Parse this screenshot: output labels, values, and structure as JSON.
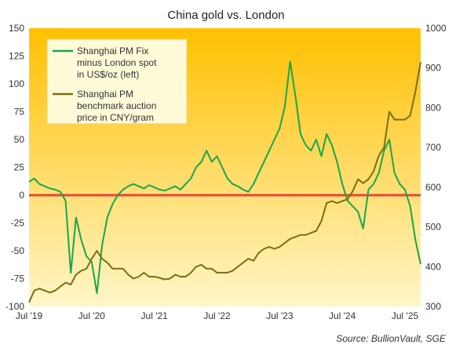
{
  "chart_data": {
    "type": "line",
    "title": "China gold vs. London",
    "source": "Source: BullionVault, SGE",
    "x_ticks": [
      "Jul '19",
      "Jul '20",
      "Jul '21",
      "Jul '22",
      "Jul '23",
      "Jul '24",
      "Jul '25"
    ],
    "x_range": [
      "2019-07",
      "2025-10"
    ],
    "left_axis": {
      "range": [
        -100,
        150
      ],
      "ticks": [
        150,
        125,
        100,
        75,
        50,
        25,
        0,
        -25,
        -50,
        -75,
        -100
      ]
    },
    "right_axis": {
      "range": [
        300,
        1000
      ],
      "ticks": [
        1000,
        900,
        800,
        700,
        600,
        500,
        400,
        300
      ]
    },
    "zero_line_color": "#e8443a",
    "background_gradient": [
      "#ffc000",
      "#fff6c8"
    ],
    "legend_position": "top-left",
    "series": [
      {
        "name": "Shanghai PM Fix minus London spot in US$/oz (left)",
        "legend_lines": [
          "Shanghai PM Fix",
          "minus London spot",
          "in US$/oz (left)"
        ],
        "axis": "left",
        "color": "#1aa64b",
        "points": [
          [
            "2019-07",
            12
          ],
          [
            "2019-08",
            15
          ],
          [
            "2019-09",
            10
          ],
          [
            "2019-10",
            8
          ],
          [
            "2019-11",
            6
          ],
          [
            "2019-12",
            5
          ],
          [
            "2020-01",
            3
          ],
          [
            "2020-02",
            -5
          ],
          [
            "2020-03",
            -70
          ],
          [
            "2020-04",
            -20
          ],
          [
            "2020-05",
            -40
          ],
          [
            "2020-06",
            -55
          ],
          [
            "2020-07",
            -60
          ],
          [
            "2020-08",
            -88
          ],
          [
            "2020-09",
            -45
          ],
          [
            "2020-10",
            -20
          ],
          [
            "2020-11",
            -8
          ],
          [
            "2020-12",
            0
          ],
          [
            "2021-01",
            5
          ],
          [
            "2021-02",
            8
          ],
          [
            "2021-03",
            10
          ],
          [
            "2021-04",
            8
          ],
          [
            "2021-05",
            6
          ],
          [
            "2021-06",
            9
          ],
          [
            "2021-07",
            7
          ],
          [
            "2021-08",
            5
          ],
          [
            "2021-09",
            4
          ],
          [
            "2021-10",
            6
          ],
          [
            "2021-11",
            8
          ],
          [
            "2021-12",
            5
          ],
          [
            "2022-01",
            10
          ],
          [
            "2022-02",
            15
          ],
          [
            "2022-03",
            25
          ],
          [
            "2022-04",
            30
          ],
          [
            "2022-05",
            40
          ],
          [
            "2022-06",
            30
          ],
          [
            "2022-07",
            35
          ],
          [
            "2022-08",
            25
          ],
          [
            "2022-09",
            15
          ],
          [
            "2022-10",
            10
          ],
          [
            "2022-11",
            8
          ],
          [
            "2022-12",
            5
          ],
          [
            "2023-01",
            3
          ],
          [
            "2023-02",
            10
          ],
          [
            "2023-03",
            20
          ],
          [
            "2023-04",
            30
          ],
          [
            "2023-05",
            40
          ],
          [
            "2023-06",
            50
          ],
          [
            "2023-07",
            60
          ],
          [
            "2023-08",
            80
          ],
          [
            "2023-09",
            120
          ],
          [
            "2023-10",
            90
          ],
          [
            "2023-11",
            55
          ],
          [
            "2023-12",
            45
          ],
          [
            "2024-01",
            40
          ],
          [
            "2024-02",
            50
          ],
          [
            "2024-03",
            35
          ],
          [
            "2024-04",
            55
          ],
          [
            "2024-05",
            45
          ],
          [
            "2024-06",
            30
          ],
          [
            "2024-07",
            10
          ],
          [
            "2024-08",
            -5
          ],
          [
            "2024-09",
            -10
          ],
          [
            "2024-10",
            -15
          ],
          [
            "2024-11",
            -30
          ],
          [
            "2024-12",
            5
          ],
          [
            "2025-01",
            10
          ],
          [
            "2025-02",
            20
          ],
          [
            "2025-03",
            40
          ],
          [
            "2025-04",
            50
          ],
          [
            "2025-05",
            20
          ],
          [
            "2025-06",
            10
          ],
          [
            "2025-07",
            5
          ],
          [
            "2025-08",
            -10
          ],
          [
            "2025-09",
            -40
          ],
          [
            "2025-10",
            -62
          ]
        ]
      },
      {
        "name": "Shanghai PM benchmark auction price in CNY/gram",
        "legend_lines": [
          "Shanghai PM",
          "benchmark auction",
          "price in CNY/gram"
        ],
        "axis": "right",
        "color": "#7a6e12",
        "points": [
          [
            "2019-07",
            310
          ],
          [
            "2019-08",
            340
          ],
          [
            "2019-09",
            345
          ],
          [
            "2019-10",
            340
          ],
          [
            "2019-11",
            335
          ],
          [
            "2019-12",
            340
          ],
          [
            "2020-01",
            350
          ],
          [
            "2020-02",
            360
          ],
          [
            "2020-03",
            355
          ],
          [
            "2020-04",
            380
          ],
          [
            "2020-05",
            390
          ],
          [
            "2020-06",
            395
          ],
          [
            "2020-07",
            420
          ],
          [
            "2020-08",
            440
          ],
          [
            "2020-09",
            420
          ],
          [
            "2020-10",
            410
          ],
          [
            "2020-11",
            395
          ],
          [
            "2020-12",
            395
          ],
          [
            "2021-01",
            395
          ],
          [
            "2021-02",
            380
          ],
          [
            "2021-03",
            370
          ],
          [
            "2021-04",
            375
          ],
          [
            "2021-05",
            385
          ],
          [
            "2021-06",
            375
          ],
          [
            "2021-07",
            375
          ],
          [
            "2021-08",
            372
          ],
          [
            "2021-09",
            368
          ],
          [
            "2021-10",
            370
          ],
          [
            "2021-11",
            380
          ],
          [
            "2021-12",
            375
          ],
          [
            "2022-01",
            375
          ],
          [
            "2022-02",
            385
          ],
          [
            "2022-03",
            400
          ],
          [
            "2022-04",
            405
          ],
          [
            "2022-05",
            395
          ],
          [
            "2022-06",
            395
          ],
          [
            "2022-07",
            385
          ],
          [
            "2022-08",
            385
          ],
          [
            "2022-09",
            385
          ],
          [
            "2022-10",
            390
          ],
          [
            "2022-11",
            400
          ],
          [
            "2022-12",
            410
          ],
          [
            "2023-01",
            420
          ],
          [
            "2023-02",
            415
          ],
          [
            "2023-03",
            435
          ],
          [
            "2023-04",
            445
          ],
          [
            "2023-05",
            450
          ],
          [
            "2023-06",
            445
          ],
          [
            "2023-07",
            450
          ],
          [
            "2023-08",
            460
          ],
          [
            "2023-09",
            470
          ],
          [
            "2023-10",
            475
          ],
          [
            "2023-11",
            480
          ],
          [
            "2023-12",
            480
          ],
          [
            "2024-01",
            485
          ],
          [
            "2024-02",
            490
          ],
          [
            "2024-03",
            515
          ],
          [
            "2024-04",
            560
          ],
          [
            "2024-05",
            565
          ],
          [
            "2024-06",
            560
          ],
          [
            "2024-07",
            565
          ],
          [
            "2024-08",
            570
          ],
          [
            "2024-09",
            590
          ],
          [
            "2024-10",
            620
          ],
          [
            "2024-11",
            610
          ],
          [
            "2024-12",
            620
          ],
          [
            "2025-01",
            640
          ],
          [
            "2025-02",
            680
          ],
          [
            "2025-03",
            700
          ],
          [
            "2025-04",
            790
          ],
          [
            "2025-05",
            770
          ],
          [
            "2025-06",
            770
          ],
          [
            "2025-07",
            770
          ],
          [
            "2025-08",
            780
          ],
          [
            "2025-09",
            840
          ],
          [
            "2025-10",
            915
          ]
        ]
      }
    ]
  }
}
